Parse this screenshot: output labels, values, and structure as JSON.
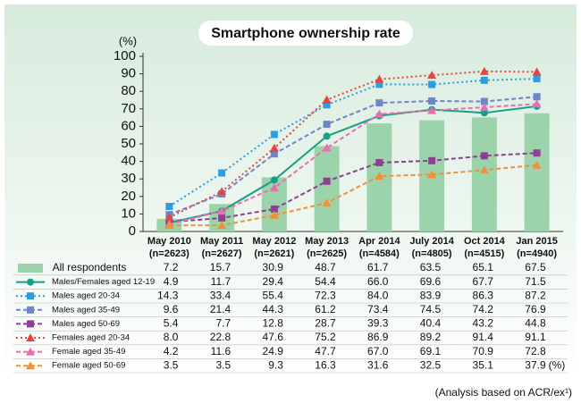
{
  "chart_data": {
    "type": "combo",
    "title": "Smartphone ownership rate",
    "ylabel": "(%)",
    "table_unit": "(%)",
    "footnote": "(Analysis based on ACR/ex¹)",
    "categories": [
      "May 2010",
      "May 2011",
      "May 2012",
      "May 2013",
      "Apr 2014",
      "July 2014",
      "Oct 2014",
      "Jan 2015"
    ],
    "category_notes": [
      "(n=2623)",
      "(n=2627)",
      "(n=2621)",
      "(n=2625)",
      "(n=4584)",
      "(n=4805)",
      "(n=4515)",
      "(n=4940)"
    ],
    "ylim": [
      0,
      100
    ],
    "yticks": [
      0,
      10,
      20,
      30,
      40,
      50,
      60,
      70,
      80,
      90,
      100
    ],
    "series": [
      {
        "name": "All respondents",
        "type": "bar",
        "color": "#9dd3ab",
        "values": [
          7.2,
          15.7,
          30.9,
          48.7,
          61.7,
          63.5,
          65.1,
          67.5
        ],
        "value_labels": [
          "7.2",
          "15.7",
          "30.9",
          "48.7",
          "61.7",
          "63.5",
          "65.1",
          "67.5"
        ]
      },
      {
        "name": "Males/Females aged 12-19",
        "type": "line",
        "style": "solid",
        "marker": "circle",
        "color": "#16a085",
        "values": [
          4.9,
          11.7,
          29.4,
          54.4,
          66.0,
          69.6,
          67.7,
          71.5
        ],
        "value_labels": [
          "4.9",
          "11.7",
          "29.4",
          "54.4",
          "66.0",
          "69.6",
          "67.7",
          "71.5"
        ]
      },
      {
        "name": "Males aged 20-34",
        "type": "line",
        "style": "dotted",
        "marker": "square",
        "color": "#2b9de0",
        "values": [
          14.3,
          33.4,
          55.4,
          72.3,
          84.0,
          83.9,
          86.3,
          87.2
        ],
        "value_labels": [
          "14.3",
          "33.4",
          "55.4",
          "72.3",
          "84.0",
          "83.9",
          "86.3",
          "87.2"
        ]
      },
      {
        "name": "Males aged 35-49",
        "type": "line",
        "style": "dashed",
        "marker": "square",
        "color": "#6c86c8",
        "values": [
          9.6,
          21.4,
          44.3,
          61.2,
          73.4,
          74.5,
          74.2,
          76.9
        ],
        "value_labels": [
          "9.6",
          "21.4",
          "44.3",
          "61.2",
          "73.4",
          "74.5",
          "74.2",
          "76.9"
        ]
      },
      {
        "name": "Males aged 50-69",
        "type": "line",
        "style": "dashed",
        "marker": "square",
        "color": "#8e3f95",
        "values": [
          5.4,
          7.7,
          12.8,
          28.7,
          39.3,
          40.4,
          43.2,
          44.8
        ],
        "value_labels": [
          "5.4",
          "7.7",
          "12.8",
          "28.7",
          "39.3",
          "40.4",
          "43.2",
          "44.8"
        ]
      },
      {
        "name": "Females aged 20-34",
        "type": "line",
        "style": "dotted",
        "marker": "triangle",
        "color": "#e8433f",
        "values": [
          8.0,
          22.8,
          47.6,
          75.2,
          86.9,
          89.2,
          91.4,
          91.1
        ],
        "value_labels": [
          "8.0",
          "22.8",
          "47.6",
          "75.2",
          "86.9",
          "89.2",
          "91.4",
          "91.1"
        ]
      },
      {
        "name": "Female aged 35-49",
        "type": "line",
        "style": "dashed",
        "marker": "triangle",
        "color": "#e970ae",
        "values": [
          4.2,
          11.6,
          24.9,
          47.7,
          67.0,
          69.1,
          70.9,
          72.8
        ],
        "value_labels": [
          "4.2",
          "11.6",
          "24.9",
          "47.7",
          "67.0",
          "69.1",
          "70.9",
          "72.8"
        ]
      },
      {
        "name": "Female aged 50-69",
        "type": "line",
        "style": "dashed",
        "marker": "triangle",
        "color": "#f0913a",
        "values": [
          3.5,
          3.5,
          9.3,
          16.3,
          31.6,
          32.5,
          35.1,
          37.9
        ],
        "value_labels": [
          "3.5",
          "3.5",
          "9.3",
          "16.3",
          "31.6",
          "32.5",
          "35.1",
          "37.9"
        ]
      }
    ]
  }
}
